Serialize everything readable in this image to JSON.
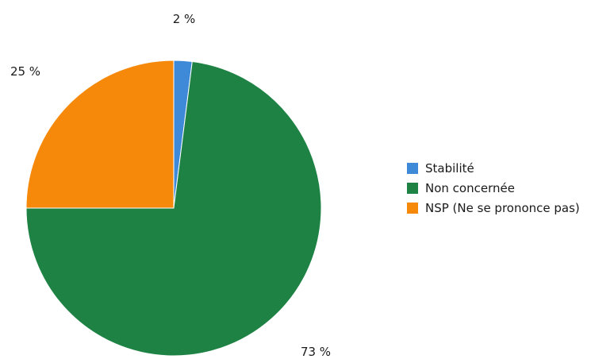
{
  "chart_data": {
    "type": "pie",
    "title": "",
    "categories": [
      "Stabilité",
      "Non concernée",
      "NSP (Ne se prononce pas)"
    ],
    "values": [
      2,
      73,
      25
    ],
    "labels": [
      "2 %",
      "73 %",
      "25 %"
    ],
    "colors": [
      "#3e8ad8",
      "#1e8244",
      "#f6890a"
    ],
    "legend_position": "right"
  }
}
